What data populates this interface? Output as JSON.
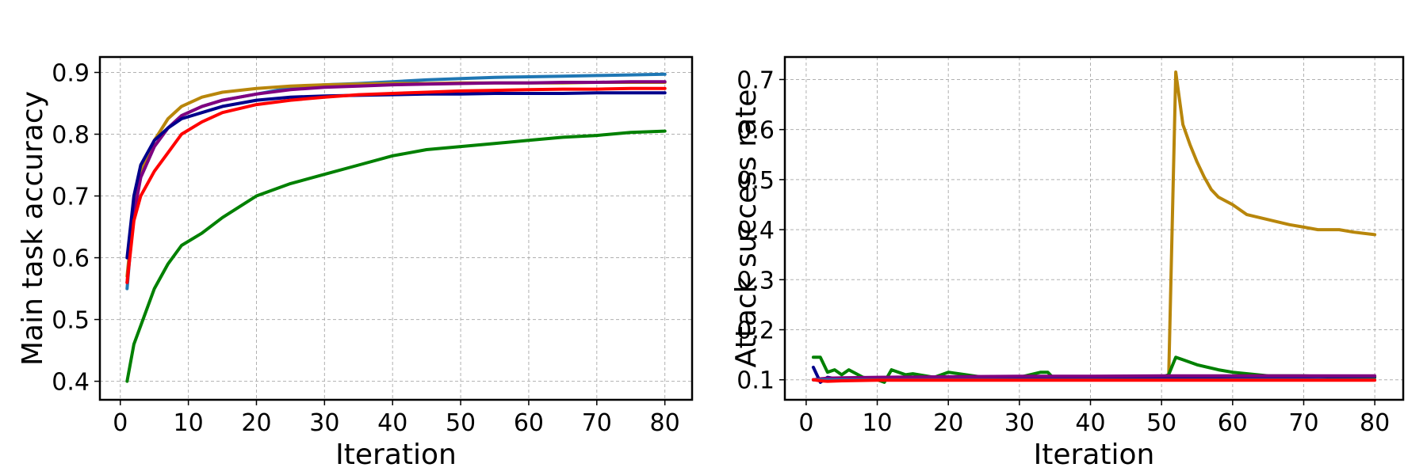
{
  "chart_data": [
    {
      "type": "line",
      "xlabel": "Iteration",
      "ylabel": "Main task accuracy",
      "xlim": [
        -3,
        84
      ],
      "ylim": [
        0.37,
        0.925
      ],
      "xticks": [
        0,
        10,
        20,
        30,
        40,
        50,
        60,
        70,
        80
      ],
      "yticks": [
        0.4,
        0.5,
        0.6,
        0.7,
        0.8,
        0.9
      ],
      "xtick_labels": [
        "0",
        "10",
        "20",
        "30",
        "40",
        "50",
        "60",
        "70",
        "80"
      ],
      "ytick_labels": [
        "0.4",
        "0.5",
        "0.6",
        "0.7",
        "0.8",
        "0.9"
      ],
      "grid": true,
      "series": [
        {
          "color": "#1f77b4",
          "x": [
            1,
            2,
            3,
            5,
            7,
            9,
            12,
            15,
            20,
            25,
            30,
            35,
            40,
            45,
            50,
            55,
            60,
            65,
            70,
            75,
            80
          ],
          "y": [
            0.55,
            0.68,
            0.73,
            0.78,
            0.81,
            0.83,
            0.845,
            0.855,
            0.865,
            0.875,
            0.88,
            0.882,
            0.885,
            0.888,
            0.89,
            0.892,
            0.893,
            0.894,
            0.895,
            0.896,
            0.897
          ]
        },
        {
          "color": "#b8860b",
          "x": [
            1,
            2,
            3,
            5,
            7,
            9,
            12,
            15,
            20,
            25,
            30,
            35,
            40,
            45,
            50,
            55,
            60,
            65,
            70,
            75,
            80
          ],
          "y": [
            0.57,
            0.68,
            0.74,
            0.79,
            0.825,
            0.845,
            0.86,
            0.868,
            0.874,
            0.878,
            0.88,
            0.881,
            0.882,
            0.882,
            0.883,
            0.883,
            0.883,
            0.883,
            0.884,
            0.884,
            0.884
          ]
        },
        {
          "color": "#800080",
          "x": [
            1,
            2,
            3,
            5,
            7,
            9,
            12,
            15,
            20,
            25,
            30,
            35,
            40,
            45,
            50,
            55,
            60,
            65,
            70,
            75,
            80
          ],
          "y": [
            0.56,
            0.67,
            0.73,
            0.78,
            0.81,
            0.83,
            0.845,
            0.855,
            0.865,
            0.872,
            0.876,
            0.878,
            0.88,
            0.881,
            0.882,
            0.883,
            0.883,
            0.884,
            0.884,
            0.885,
            0.885
          ]
        },
        {
          "color": "#00008b",
          "x": [
            1,
            2,
            3,
            5,
            7,
            9,
            12,
            15,
            20,
            25,
            30,
            35,
            40,
            45,
            50,
            55,
            60,
            65,
            70,
            75,
            80
          ],
          "y": [
            0.6,
            0.7,
            0.75,
            0.79,
            0.81,
            0.825,
            0.835,
            0.845,
            0.855,
            0.86,
            0.862,
            0.863,
            0.864,
            0.865,
            0.865,
            0.866,
            0.866,
            0.866,
            0.867,
            0.867,
            0.867
          ]
        },
        {
          "color": "#ff0000",
          "x": [
            1,
            2,
            3,
            5,
            7,
            9,
            12,
            15,
            20,
            25,
            30,
            35,
            40,
            45,
            50,
            55,
            60,
            65,
            70,
            75,
            80
          ],
          "y": [
            0.56,
            0.66,
            0.7,
            0.74,
            0.77,
            0.8,
            0.82,
            0.835,
            0.848,
            0.855,
            0.86,
            0.864,
            0.866,
            0.868,
            0.87,
            0.871,
            0.872,
            0.873,
            0.873,
            0.874,
            0.874
          ]
        },
        {
          "color": "#008000",
          "x": [
            1,
            2,
            3,
            5,
            7,
            9,
            12,
            15,
            20,
            25,
            30,
            35,
            40,
            45,
            50,
            55,
            60,
            65,
            70,
            75,
            80
          ],
          "y": [
            0.4,
            0.46,
            0.49,
            0.55,
            0.59,
            0.62,
            0.64,
            0.665,
            0.7,
            0.72,
            0.735,
            0.75,
            0.765,
            0.775,
            0.78,
            0.785,
            0.79,
            0.795,
            0.798,
            0.803,
            0.805
          ]
        }
      ]
    },
    {
      "type": "line",
      "xlabel": "Iteration",
      "ylabel": "Attack success rate",
      "xlim": [
        -3,
        84
      ],
      "ylim": [
        0.06,
        0.745
      ],
      "xticks": [
        0,
        10,
        20,
        30,
        40,
        50,
        60,
        70,
        80
      ],
      "yticks": [
        0.1,
        0.2,
        0.3,
        0.4,
        0.5,
        0.6,
        0.7
      ],
      "xtick_labels": [
        "0",
        "10",
        "20",
        "30",
        "40",
        "50",
        "60",
        "70",
        "80"
      ],
      "ytick_labels": [
        "0.1",
        "0.2",
        "0.3",
        "0.4",
        "0.5",
        "0.6",
        "0.7"
      ],
      "grid": true,
      "series": [
        {
          "color": "#b8860b",
          "x": [
            1,
            2,
            3,
            5,
            10,
            20,
            30,
            40,
            50,
            51,
            52,
            53,
            54,
            55,
            56,
            57,
            58,
            60,
            62,
            65,
            68,
            70,
            72,
            75,
            77,
            80
          ],
          "y": [
            0.1,
            0.1,
            0.1,
            0.1,
            0.1,
            0.1,
            0.1,
            0.1,
            0.1,
            0.1,
            0.715,
            0.61,
            0.57,
            0.535,
            0.505,
            0.48,
            0.465,
            0.45,
            0.43,
            0.42,
            0.41,
            0.405,
            0.4,
            0.4,
            0.395,
            0.39
          ]
        },
        {
          "color": "#008000",
          "x": [
            1,
            2,
            3,
            4,
            5,
            6,
            8,
            10,
            11,
            12,
            14,
            15,
            18,
            20,
            25,
            30,
            33,
            34,
            35,
            40,
            45,
            50,
            51,
            52,
            53,
            55,
            58,
            60,
            65,
            70,
            75,
            80
          ],
          "y": [
            0.145,
            0.145,
            0.115,
            0.12,
            0.11,
            0.12,
            0.105,
            0.1,
            0.095,
            0.12,
            0.11,
            0.112,
            0.105,
            0.115,
            0.105,
            0.105,
            0.115,
            0.115,
            0.1,
            0.105,
            0.105,
            0.105,
            0.11,
            0.145,
            0.14,
            0.13,
            0.12,
            0.115,
            0.108,
            0.108,
            0.105,
            0.105
          ]
        },
        {
          "color": "#00008b",
          "x": [
            1,
            2,
            3,
            5,
            10,
            20,
            30,
            40,
            50,
            60,
            70,
            80
          ],
          "y": [
            0.125,
            0.095,
            0.105,
            0.1,
            0.102,
            0.103,
            0.104,
            0.105,
            0.105,
            0.106,
            0.106,
            0.107
          ]
        },
        {
          "color": "#800080",
          "x": [
            1,
            2,
            3,
            5,
            10,
            20,
            30,
            40,
            50,
            60,
            70,
            80
          ],
          "y": [
            0.1,
            0.102,
            0.103,
            0.104,
            0.105,
            0.106,
            0.107,
            0.107,
            0.108,
            0.108,
            0.108,
            0.108
          ]
        },
        {
          "color": "#1f77b4",
          "x": [
            1,
            2,
            3,
            5,
            10,
            20,
            30,
            40,
            50,
            60,
            70,
            80
          ],
          "y": [
            0.1,
            0.1,
            0.1,
            0.1,
            0.1,
            0.1,
            0.1,
            0.1,
            0.1,
            0.1,
            0.1,
            0.1
          ]
        },
        {
          "color": "#ff0000",
          "x": [
            1,
            2,
            3,
            5,
            10,
            20,
            30,
            40,
            50,
            60,
            70,
            80
          ],
          "y": [
            0.1,
            0.098,
            0.097,
            0.098,
            0.099,
            0.099,
            0.099,
            0.099,
            0.099,
            0.099,
            0.099,
            0.099
          ]
        }
      ]
    }
  ]
}
